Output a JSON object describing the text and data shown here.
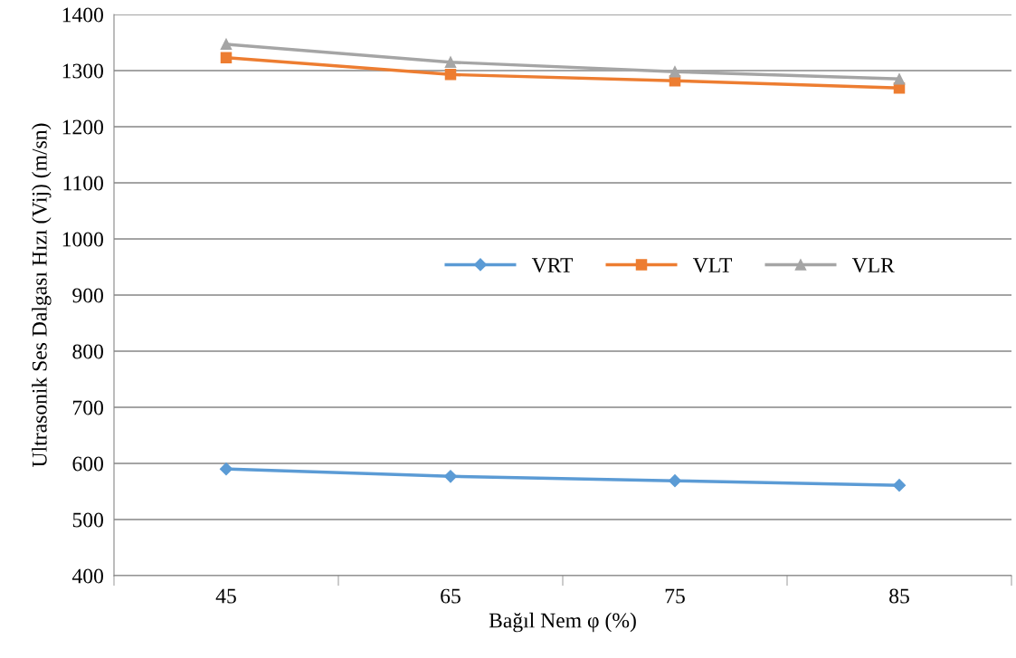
{
  "chart_data": {
    "type": "line",
    "xlabel": "Bağıl Nem φ (%)",
    "ylabel": "Ultrasonik Ses Dalgası Hızı (Vij) (m/sn)",
    "categories": [
      "45",
      "65",
      "75",
      "85"
    ],
    "series": [
      {
        "name": "VRT",
        "color": "#5b9bd5",
        "marker": "diamond",
        "values": [
          590,
          577,
          569,
          561
        ]
      },
      {
        "name": "VLT",
        "color": "#ed7d31",
        "marker": "square",
        "values": [
          1323,
          1293,
          1282,
          1269
        ]
      },
      {
        "name": "VLR",
        "color": "#a5a5a5",
        "marker": "triangle",
        "values": [
          1347,
          1315,
          1298,
          1285
        ]
      }
    ],
    "ylim": [
      400,
      1400
    ],
    "yticks": [
      400,
      500,
      600,
      700,
      800,
      900,
      1000,
      1100,
      1200,
      1300,
      1400
    ],
    "grid": "y",
    "legend": "center",
    "line_style": "solid"
  }
}
